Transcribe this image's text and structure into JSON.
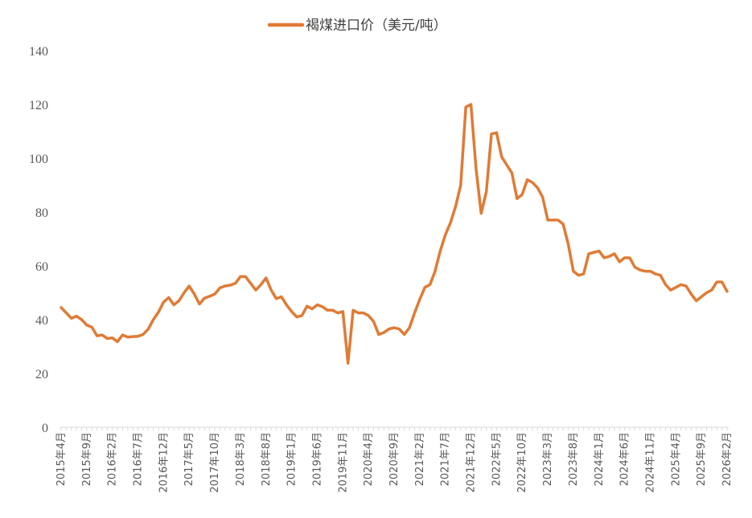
{
  "chart_data": {
    "type": "line",
    "title": "",
    "xlabel": "",
    "ylabel": "",
    "ylim": [
      0,
      140
    ],
    "yticks": [
      0,
      20,
      40,
      60,
      80,
      100,
      120,
      140
    ],
    "grid": false,
    "legend_position": "top-center",
    "series": [
      {
        "name": "褐煤进口价（美元/吨）",
        "color": "#E07B35",
        "start": "2015-04",
        "values": [
          44.5,
          42.5,
          40.5,
          41.3,
          40.0,
          38.0,
          37.2,
          34.0,
          34.3,
          33.0,
          33.2,
          31.8,
          34.3,
          33.5,
          33.7,
          33.8,
          34.5,
          36.5,
          40.0,
          42.8,
          46.5,
          48.2,
          45.5,
          47.0,
          50.0,
          52.5,
          49.5,
          45.8,
          48.0,
          48.7,
          49.5,
          51.8,
          52.5,
          52.8,
          53.5,
          56.0,
          56.0,
          53.5,
          51.0,
          53.0,
          55.5,
          51.0,
          47.8,
          48.5,
          45.5,
          43.0,
          41.0,
          41.5,
          45.0,
          44.0,
          45.5,
          44.8,
          43.5,
          43.5,
          42.5,
          43.0,
          23.8,
          43.5,
          42.5,
          42.5,
          41.5,
          39.3,
          34.5,
          35.2,
          36.5,
          37.0,
          36.5,
          34.5,
          37.0,
          42.5,
          47.5,
          52.0,
          53.0,
          58.0,
          65.5,
          71.5,
          76.0,
          82.0,
          90.0,
          119.0,
          120.0,
          96.0,
          79.5,
          87.5,
          109.0,
          109.5,
          100.5,
          97.5,
          94.5,
          85.0,
          86.5,
          92.0,
          91.0,
          89.0,
          85.5,
          77.0,
          77.0,
          77.0,
          75.5,
          68.0,
          58.0,
          56.5,
          57.0,
          64.5,
          65.0,
          65.5,
          63.0,
          63.5,
          64.5,
          61.5,
          63.0,
          63.0,
          59.5,
          58.5,
          58.0,
          58.0,
          57.0,
          56.5,
          53.0,
          51.0,
          52.0,
          53.0,
          52.5,
          49.5,
          47.0,
          48.5,
          50.0,
          51.0,
          54.0,
          54.0,
          50.5
        ]
      }
    ],
    "x_tick_labels": [
      "2015年4月",
      "2015年9月",
      "2016年2月",
      "2016年7月",
      "2016年12月",
      "2017年5月",
      "2017年10月",
      "2018年3月",
      "2018年8月",
      "2019年1月",
      "2019年6月",
      "2019年11月",
      "2020年4月",
      "2020年9月",
      "2021年2月",
      "2021年7月",
      "2021年12月",
      "2022年5月",
      "2022年10月",
      "2023年3月",
      "2023年8月",
      "2024年1月",
      "2024年6月",
      "2024年11月",
      "2025年4月",
      "2025年9月",
      "2026年2月"
    ]
  }
}
